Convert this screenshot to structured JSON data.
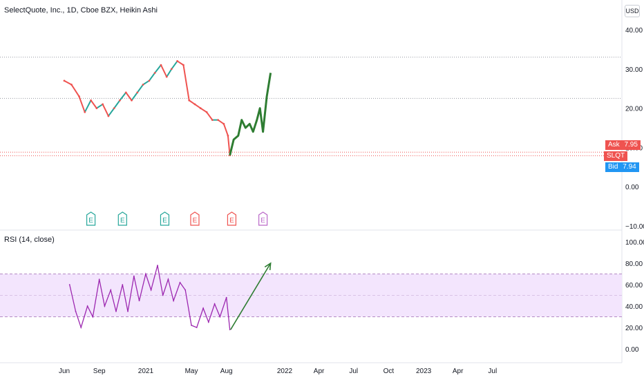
{
  "header": {
    "title": "SelectQuote, Inc., 1D, Cboe BZX, Heikin Ashi",
    "currency": "USD"
  },
  "price_tags": {
    "ask_label": "Ask",
    "ask_value": "7.95",
    "symbol": "SLQT",
    "bid_label": "Bid",
    "bid_value": "7.94"
  },
  "earnings_markers": [
    {
      "label": "E",
      "color": "#26a69a"
    },
    {
      "label": "E",
      "color": "#26a69a"
    },
    {
      "label": "E",
      "color": "#26a69a"
    },
    {
      "label": "E",
      "color": "#ef5350"
    },
    {
      "label": "E",
      "color": "#ef5350"
    },
    {
      "label": "E",
      "color": "#ba68c8"
    }
  ],
  "rsi": {
    "title": "RSI (14, close)"
  },
  "colors": {
    "up": "#26a69a",
    "down": "#ef5350",
    "drawing": "#2e7d32",
    "rsi_line": "#9c27b0",
    "rsi_band": "#f3e5fd",
    "ask": "#ef5350",
    "bid": "#2196f3"
  },
  "chart_data": [
    {
      "type": "line",
      "panel": "price",
      "ylim": [
        -10,
        45
      ],
      "yticks": [
        "40.00",
        "30.00",
        "20.00",
        "10.00",
        "0.00",
        "−10.00"
      ],
      "x": [
        "2020-06-01",
        "2020-06-20",
        "2020-07-10",
        "2020-07-25",
        "2020-08-10",
        "2020-08-25",
        "2020-09-10",
        "2020-09-25",
        "2020-10-10",
        "2020-10-25",
        "2020-11-10",
        "2020-11-25",
        "2020-12-10",
        "2020-12-25",
        "2021-01-10",
        "2021-01-25",
        "2021-02-10",
        "2021-02-25",
        "2021-03-10",
        "2021-03-25",
        "2021-04-10",
        "2021-04-25",
        "2021-05-10",
        "2021-05-25",
        "2021-06-10",
        "2021-06-25",
        "2021-07-10",
        "2021-07-25",
        "2021-08-05",
        "2021-08-10"
      ],
      "values": [
        27,
        26,
        23,
        19,
        22,
        20,
        21,
        18,
        20,
        22,
        24,
        22,
        24,
        26,
        27,
        29,
        31,
        28,
        30,
        32,
        31,
        22,
        21,
        20,
        19,
        17,
        17,
        16,
        13,
        8
      ],
      "horizontal_lines": [
        33,
        22.5,
        8.8,
        7.9
      ],
      "forecast_path": {
        "x": [
          "2021-08-10",
          "2021-08-20",
          "2021-09-01",
          "2021-09-10",
          "2021-09-20",
          "2021-10-01",
          "2021-10-10",
          "2021-10-20",
          "2021-10-28",
          "2021-11-05",
          "2021-11-15",
          "2021-11-25"
        ],
        "values": [
          8,
          12,
          13,
          17,
          15,
          16,
          14,
          17,
          20,
          14,
          23,
          29
        ]
      }
    },
    {
      "type": "line",
      "panel": "rsi",
      "ylim": [
        -10,
        110
      ],
      "yticks": [
        "100.00",
        "80.00",
        "60.00",
        "40.00",
        "20.00",
        "0.00"
      ],
      "band": [
        30,
        70
      ],
      "x": [
        "2020-06-15",
        "2020-07-01",
        "2020-07-15",
        "2020-08-01",
        "2020-08-15",
        "2020-09-01",
        "2020-09-15",
        "2020-10-01",
        "2020-10-15",
        "2020-11-01",
        "2020-11-15",
        "2020-12-01",
        "2020-12-15",
        "2021-01-01",
        "2021-01-15",
        "2021-02-01",
        "2021-02-15",
        "2021-03-01",
        "2021-03-15",
        "2021-04-01",
        "2021-04-15",
        "2021-05-01",
        "2021-05-15",
        "2021-06-01",
        "2021-06-15",
        "2021-07-01",
        "2021-07-15",
        "2021-08-01",
        "2021-08-10"
      ],
      "values": [
        60,
        35,
        20,
        40,
        30,
        65,
        40,
        55,
        35,
        60,
        35,
        68,
        45,
        70,
        55,
        78,
        50,
        65,
        45,
        62,
        55,
        22,
        20,
        38,
        25,
        42,
        30,
        48,
        18
      ],
      "arrow": {
        "from": [
          "2021-08-12",
          18
        ],
        "to": [
          "2021-11-25",
          80
        ]
      }
    }
  ],
  "x_axis": {
    "ticks": [
      "Jun",
      "Sep",
      "2021",
      "May",
      "Aug",
      "2022",
      "Apr",
      "Jul",
      "Oct",
      "2023",
      "Apr",
      "Jul"
    ]
  }
}
